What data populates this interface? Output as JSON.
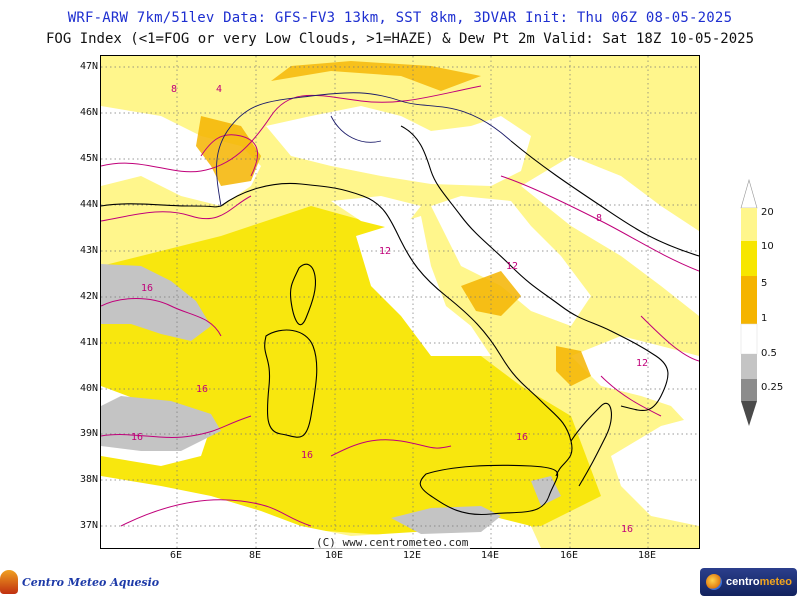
{
  "header": {
    "line1": "WRF-ARW 7km/51lev  Data: GFS-FV3 13km, SST 8km, 3DVAR  Init: Thu 06Z 08-05-2025",
    "line2": "FOG Index (<1=FOG or very Low Clouds, >1=HAZE) & Dew Pt 2m  Valid: Sat 18Z 10-05-2025"
  },
  "map": {
    "lat_labels": [
      "47N",
      "46N",
      "45N",
      "44N",
      "43N",
      "42N",
      "41N",
      "40N",
      "39N",
      "38N",
      "37N"
    ],
    "lon_labels": [
      "6E",
      "8E",
      "10E",
      "12E",
      "14E",
      "16E",
      "18E"
    ],
    "credit": "(C) www.centrometeo.com",
    "contour_labels": [
      "4",
      "8",
      "12",
      "16"
    ],
    "colors": {
      "fill_light": "#fff68c",
      "fill_mid": "#f7e600",
      "fill_orange": "#f5b400",
      "fog_grey": "#c4c4c4",
      "contour": "#c0007a",
      "coast": "#000000",
      "border": "#1c1c6a"
    }
  },
  "colorbar": {
    "levels": [
      "20",
      "10",
      "5",
      "1",
      "0.5",
      "0.25"
    ],
    "colors": [
      "#fff68c",
      "#f7e600",
      "#f5b400",
      "#ffffff",
      "#c4c4c4",
      "#8c8c8c",
      "#4a4a4a"
    ]
  },
  "logos": {
    "left": "Centro Meteo Aquesio",
    "right_a": "centro",
    "right_b": "meteo"
  }
}
